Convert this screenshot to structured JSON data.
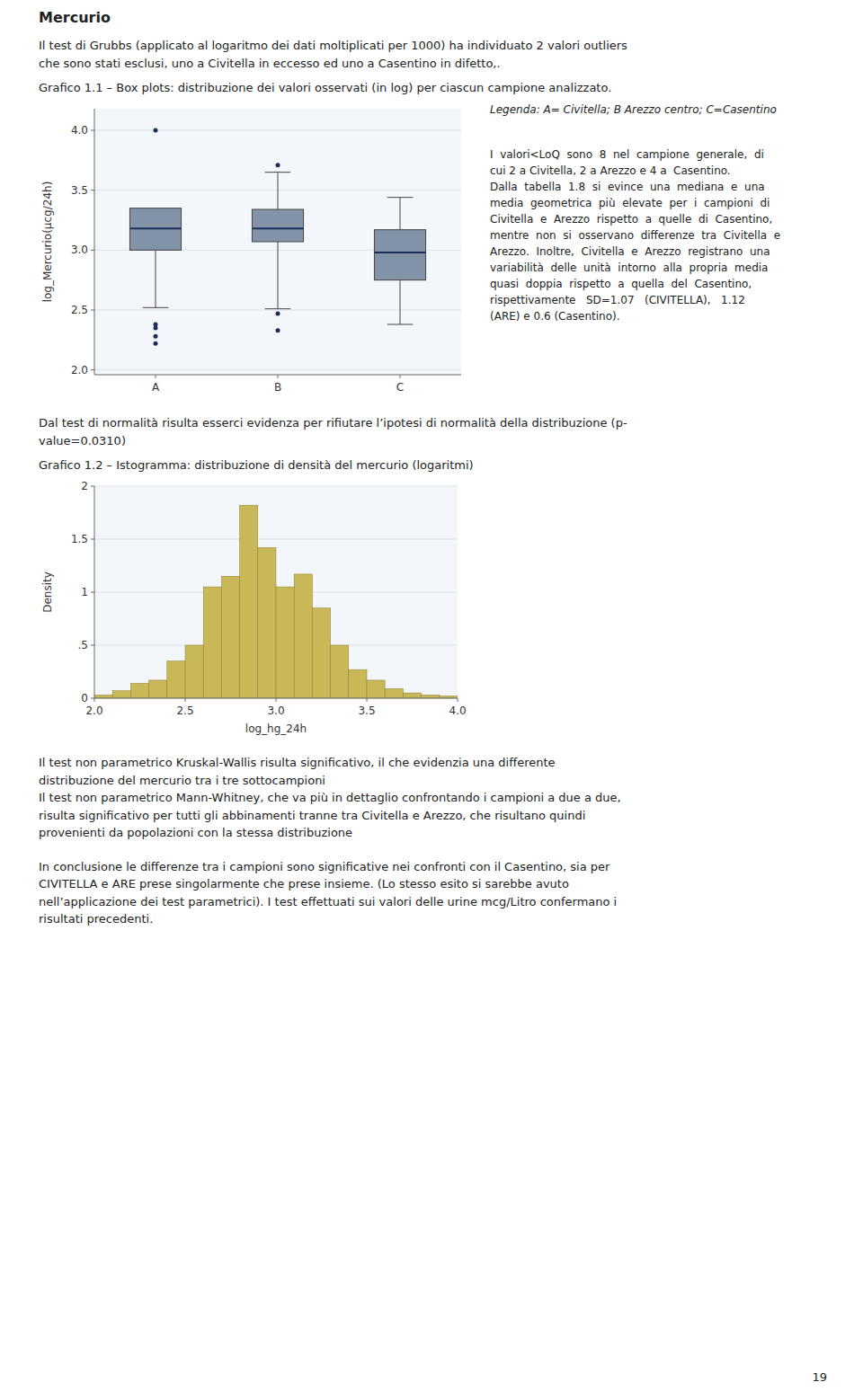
{
  "title": "Mercurio",
  "intro": [
    "Il test di Grubbs (applicato al logaritmo dei dati moltiplicati per 1000) ha individuato 2 valori outliers",
    "che sono stati esclusi, uno a Civitella in eccesso ed uno a Casentino in difetto,."
  ],
  "chart_data": [
    {
      "type": "box",
      "title": "Grafico 1.1 – Box plots: distribuzione dei valori osservati (in log) per ciascun campione analizzato.",
      "annotation": "Legenda: A= Civitella; B Arezzo centro; C=Casentino",
      "categories": [
        "A",
        "B",
        "C"
      ],
      "y_label": "log_Mercurio(µcg/24h)",
      "ylim": [
        1.96,
        4.18
      ],
      "yticks": [
        {
          "value": 2.0,
          "label": "2.0"
        },
        2.5,
        {
          "value": 3.0,
          "label": "3.0"
        },
        3.5,
        {
          "value": 4.0,
          "label": "4.0"
        }
      ],
      "color": "#8393a7",
      "grid": true,
      "boxes": [
        {
          "q1": 3.0,
          "median": 3.18,
          "q3": 3.35,
          "whisker_low": 2.52,
          "whisker_high": 3.34,
          "outliers_low": [
            2.38,
            2.35,
            2.28,
            2.22
          ],
          "outliers_high": [
            4.0
          ]
        },
        {
          "q1": 3.07,
          "median": 3.18,
          "q3": 3.34,
          "whisker_low": 2.51,
          "whisker_high": 3.65,
          "outliers_low": [
            2.47,
            2.33
          ],
          "outliers_high": [
            3.71
          ]
        },
        {
          "q1": 2.75,
          "median": 2.98,
          "q3": 3.17,
          "whisker_low": 2.38,
          "whisker_high": 3.44,
          "outliers_low": [],
          "outliers_high": []
        }
      ]
    },
    {
      "type": "histogram",
      "title": "Grafico 1.2 – Istogramma: distribuzione di densità del mercurio (logaritmi)",
      "x_label": "log_hg_24h",
      "y_label": "Density",
      "xlim": [
        2.0,
        4.0
      ],
      "ylim": [
        0,
        2.0
      ],
      "xticks": [
        {
          "value": 2.0,
          "label": "2.0"
        },
        2.5,
        {
          "value": 3.0,
          "label": "3.0"
        },
        3.5,
        {
          "value": 4.0,
          "label": "4.0"
        }
      ],
      "yticks": [
        0,
        {
          "value": 0.5,
          "label": ".5"
        },
        1,
        1.5,
        2
      ],
      "color": "#c8b858",
      "grid": true,
      "bins": [
        2.0,
        2.1,
        2.2,
        2.3,
        2.4,
        2.5,
        2.6,
        2.7,
        2.8,
        2.9,
        3.0,
        3.1,
        3.2,
        3.3,
        3.4,
        3.5,
        3.6,
        3.7,
        3.8,
        3.9,
        4.0
      ],
      "values": [
        0.03,
        0.07,
        0.14,
        0.17,
        0.35,
        0.5,
        1.05,
        1.15,
        1.82,
        1.42,
        1.05,
        1.17,
        0.85,
        0.5,
        0.27,
        0.17,
        0.09,
        0.05,
        0.03,
        0.02
      ]
    }
  ],
  "side_text": [
    "I  valori<LoQ  sono  8  nel  campione  generale,  di",
    "cui 2 a Civitella, 2 a Arezzo e 4 a  Casentino.",
    "Dalla  tabella  1.8  si  evince  una  mediana  e  una",
    "media  geometrica  più  elevate  per  i  campioni  di",
    "Civitella  e  Arezzo  rispetto  a  quelle  di  Casentino,",
    "mentre  non  si  osservano  differenze  tra  Civitella  e",
    "Arezzo.  Inoltre,  Civitella  e  Arezzo  registrano  una",
    "variabilità  delle  unità  intorno  alla  propria  media",
    "quasi  doppia  rispetto  a  quella  del  Casentino,",
    "rispettivamente   SD=1.07   (CIVITELLA),   1.12",
    "(ARE) e 0.6 (Casentino)."
  ],
  "normality_text": "Dal test di normalità risulta esserci evidenza per rifiutare l’ipotesi di normalità della distribuzione (p-\nvalue=0.0310)",
  "bottom_text": [
    "Il test non parametrico Kruskal-Wallis risulta significativo, il che evidenzia una differente\ndistribuzione del mercurio tra i tre sottocampioni\nIl test non parametrico Mann-Whitney, che va più in dettaglio confrontando i campioni a due a due,\nrisulta significativo per tutti gli abbinamenti tranne tra Civitella e Arezzo, che risultano quindi\nprovenienti da popolazioni con la stessa distribuzione",
    "In conclusione le differenze tra i campioni sono significative nei confronti con il Casentino, sia per\nCIVITELLA e ARE prese singolarmente che prese insieme. (Lo stesso esito si sarebbe avuto\nnell’applicazione dei test parametrici). I test effettuati sui valori delle urine mcg/Litro confermano i\nrisultati precedenti."
  ],
  "page_number": "19"
}
